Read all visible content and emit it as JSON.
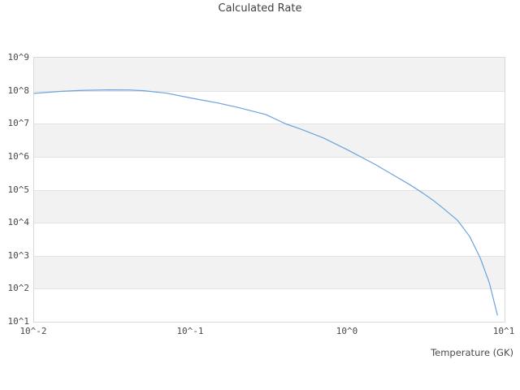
{
  "title": "Calculated Rate",
  "colors": {
    "line": "#6ba3dc",
    "band": "#f2f2f2",
    "gridline": "#e3e3e3",
    "plot_border": "#d9d9d9",
    "text": "#4a4a4a"
  },
  "chart_data": {
    "type": "line",
    "title": "Calculated Rate",
    "xlabel": "Temperature (GK)",
    "ylabel": "",
    "x_scale": "log",
    "y_scale": "log",
    "xlim": [
      0.01,
      10
    ],
    "ylim": [
      10,
      1000000000
    ],
    "x_tick_labels": [
      "10^-2",
      "10^-1",
      "10^0",
      "10^1"
    ],
    "x_tick_values": [
      0.01,
      0.1,
      1,
      10
    ],
    "y_tick_labels": [
      "10^9",
      "10^8",
      "10^7",
      "10^6",
      "10^5",
      "10^4",
      "10^3",
      "10^2",
      "10^1"
    ],
    "y_tick_values": [
      1000000000,
      100000000,
      10000000,
      1000000,
      100000,
      10000,
      1000,
      100,
      10
    ],
    "grid": "horizontal-decades",
    "background_bands": "alternating gray starting at top decade",
    "legend": "none",
    "series": [
      {
        "name": "calculated-rate",
        "color": "#6ba3dc",
        "x": [
          0.01,
          0.015,
          0.02,
          0.03,
          0.04,
          0.05,
          0.07,
          0.1,
          0.15,
          0.2,
          0.3,
          0.4,
          0.5,
          0.7,
          1.0,
          1.5,
          2.0,
          2.5,
          3.0,
          3.5,
          4.0,
          5.0,
          6.0,
          7.0,
          8.0,
          9.0
        ],
        "y": [
          83000000.0,
          96000000.0,
          102000000.0,
          106000000.0,
          105000000.0,
          100000000.0,
          84000000.0,
          60000000.0,
          42000000.0,
          31000000.0,
          19000000.0,
          10000000.0,
          6900000.0,
          3700000.0,
          1600000.0,
          580000.0,
          260000.0,
          140000.0,
          80000.0,
          48000.0,
          29000.0,
          12000.0,
          3800.0,
          850.0,
          150.0,
          16.0
        ]
      }
    ]
  }
}
